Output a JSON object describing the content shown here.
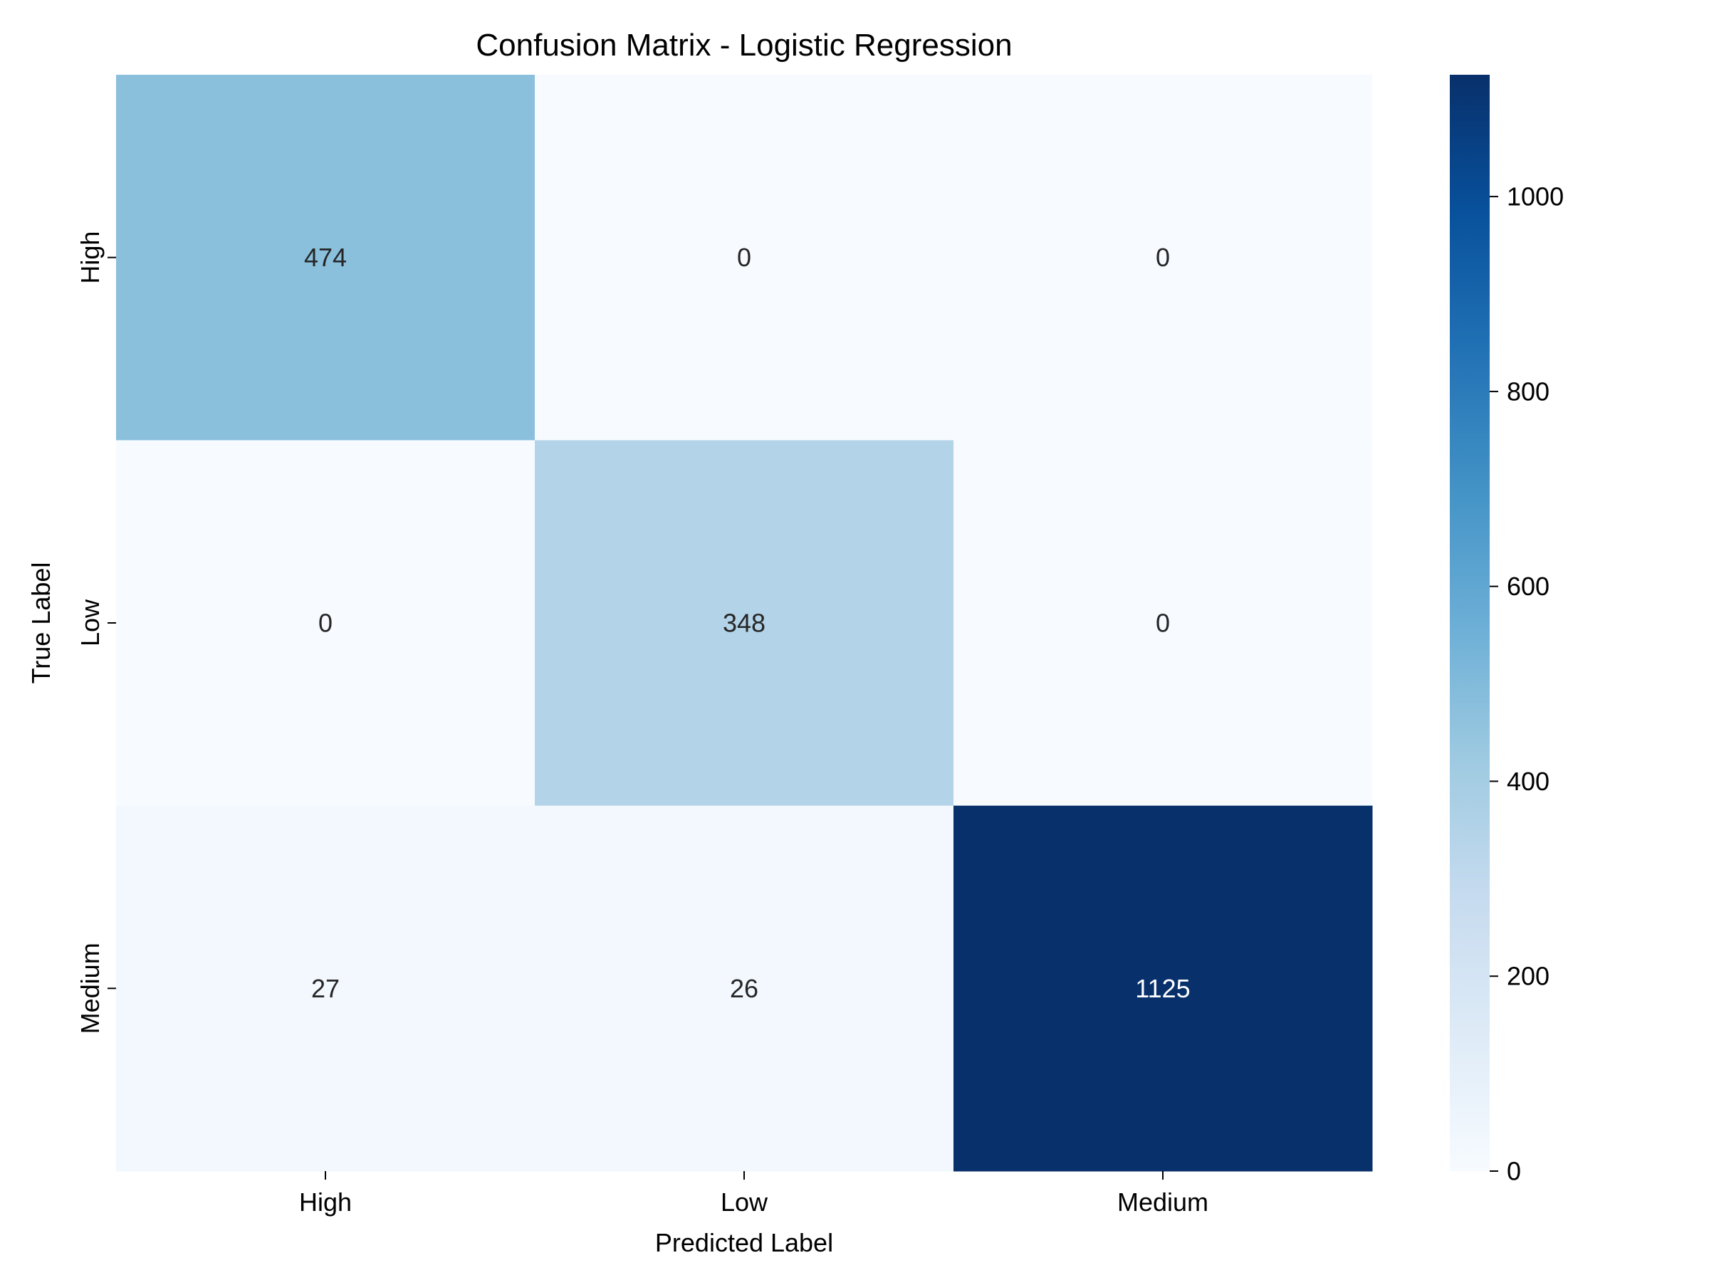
{
  "chart_data": {
    "type": "heatmap",
    "title": "Confusion Matrix - Logistic Regression",
    "xlabel": "Predicted Label",
    "ylabel": "True Label",
    "x_categories": [
      "High",
      "Low",
      "Medium"
    ],
    "y_categories": [
      "High",
      "Low",
      "Medium"
    ],
    "values": [
      [
        474,
        0,
        0
      ],
      [
        0,
        348,
        0
      ],
      [
        27,
        26,
        1125
      ]
    ],
    "colormap": "Blues",
    "colorbar": {
      "range": [
        0,
        1125
      ],
      "ticks": [
        0,
        200,
        400,
        600,
        800,
        1000
      ]
    },
    "grid": false,
    "annotated": true,
    "colors": {
      "cmap_stops": [
        "#f7fbff",
        "#deebf7",
        "#c6dbef",
        "#9ecae1",
        "#6baed6",
        "#4292c6",
        "#2171b5",
        "#08519c",
        "#08306b"
      ],
      "dark_text": "#262626",
      "light_text": "#ffffff"
    }
  }
}
